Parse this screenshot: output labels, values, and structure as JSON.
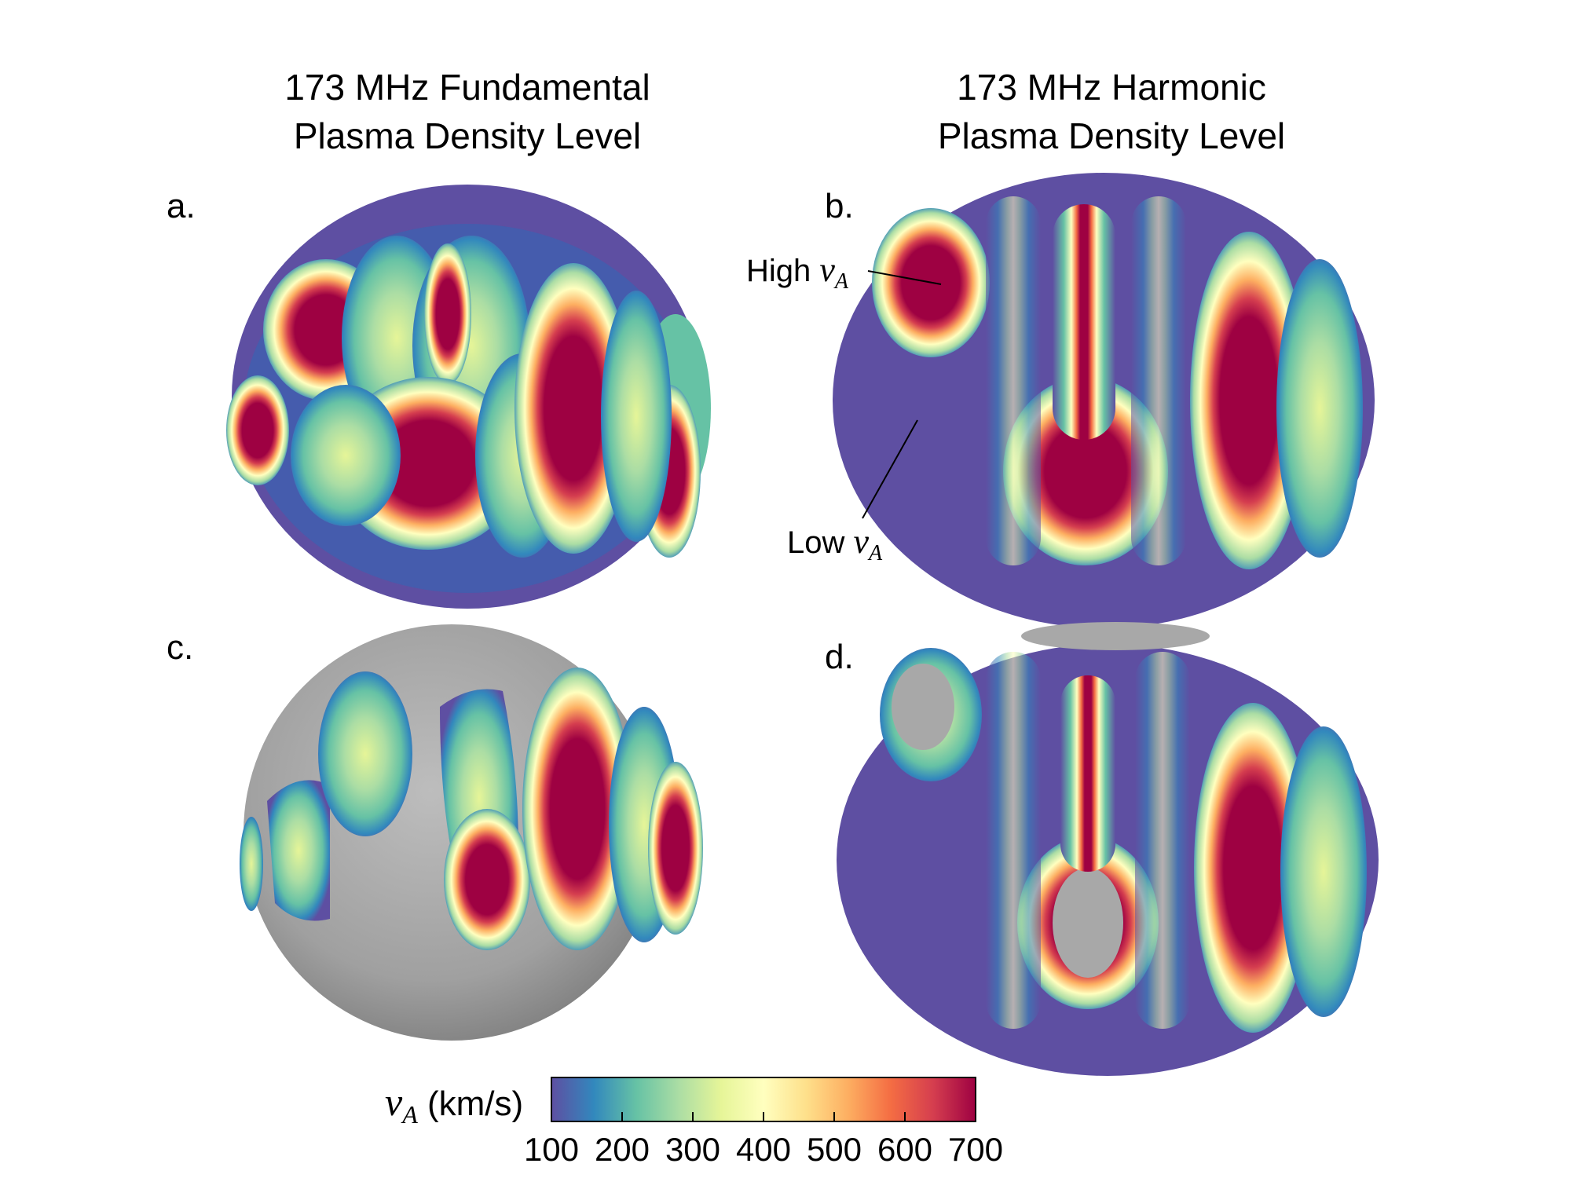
{
  "columns": {
    "left_title_line1": "173 MHz Fundamental",
    "left_title_line2": "Plasma Density Level",
    "right_title_line1": "173 MHz Harmonic",
    "right_title_line2": "Plasma Density Level"
  },
  "panels": {
    "a": "a.",
    "b": "b.",
    "c": "c.",
    "d": "d."
  },
  "annotations": {
    "high_prefix": "High ",
    "low_prefix": "Low ",
    "symbol": "v",
    "subscript": "A"
  },
  "colorbar": {
    "label_symbol": "v",
    "label_subscript": "A",
    "label_unit": "(km/s)",
    "ticks": [
      "100",
      "200",
      "300",
      "400",
      "500",
      "600",
      "700"
    ],
    "min": 100,
    "max": 700,
    "colors": [
      "#5e4fa2",
      "#3288bd",
      "#66c2a5",
      "#abdda4",
      "#e6f598",
      "#ffffbf",
      "#fee08b",
      "#fdae61",
      "#f46d43",
      "#d53e4f",
      "#9e0142"
    ]
  }
}
